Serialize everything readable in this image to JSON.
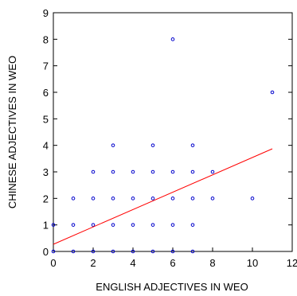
{
  "chart_data": {
    "type": "scatter",
    "title": "",
    "xlabel": "ENGLISH ADJECTIVES IN WEO",
    "ylabel": "CHINESE ADJECTIVES IN WEO",
    "xlim": [
      0,
      12
    ],
    "ylim": [
      0,
      9
    ],
    "xticks": [
      0,
      2,
      4,
      6,
      8,
      10,
      12
    ],
    "yticks": [
      0,
      1,
      2,
      3,
      4,
      5,
      6,
      7,
      8,
      9
    ],
    "grid": false,
    "series": [
      {
        "type": "scatter",
        "color": "#0000cc",
        "marker": "hollow-circle",
        "points": [
          [
            0,
            0
          ],
          [
            0,
            1
          ],
          [
            1,
            0
          ],
          [
            1,
            1
          ],
          [
            1,
            2
          ],
          [
            2,
            0
          ],
          [
            2,
            1
          ],
          [
            2,
            2
          ],
          [
            2,
            3
          ],
          [
            3,
            0
          ],
          [
            3,
            1
          ],
          [
            3,
            2
          ],
          [
            3,
            3
          ],
          [
            3,
            4
          ],
          [
            4,
            0
          ],
          [
            4,
            1
          ],
          [
            4,
            2
          ],
          [
            4,
            3
          ],
          [
            5,
            0
          ],
          [
            5,
            1
          ],
          [
            5,
            2
          ],
          [
            5,
            3
          ],
          [
            5,
            4
          ],
          [
            6,
            0
          ],
          [
            6,
            1
          ],
          [
            6,
            2
          ],
          [
            6,
            3
          ],
          [
            6,
            8
          ],
          [
            7,
            0
          ],
          [
            7,
            1
          ],
          [
            7,
            2
          ],
          [
            7,
            3
          ],
          [
            7,
            4
          ],
          [
            8,
            2
          ],
          [
            8,
            3
          ],
          [
            10,
            2
          ],
          [
            11,
            6
          ]
        ]
      },
      {
        "type": "line",
        "color": "#ff0000",
        "points": [
          [
            0,
            0.27
          ],
          [
            11,
            3.87
          ]
        ]
      }
    ]
  }
}
